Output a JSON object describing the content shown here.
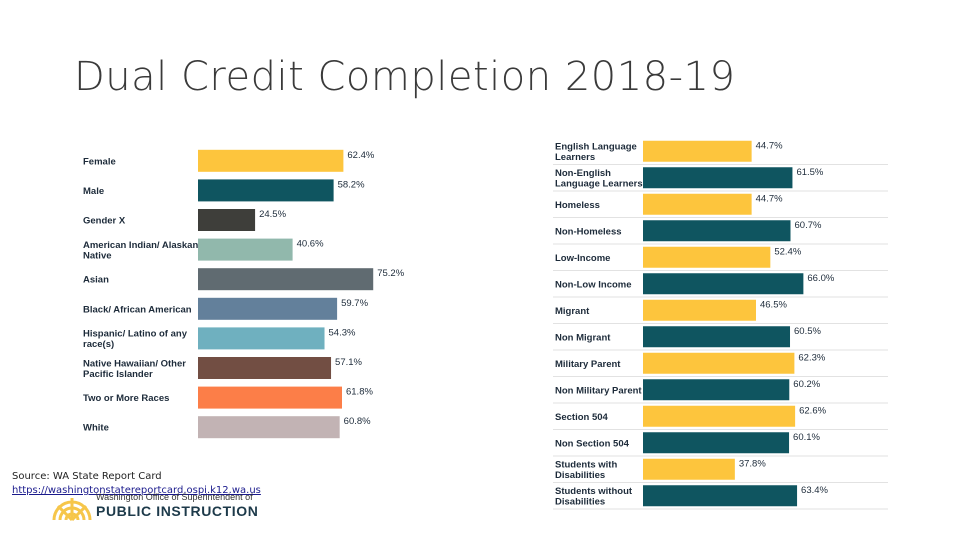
{
  "title": "Dual Credit Completion 2018-19",
  "source": {
    "label": "Source: WA State Report Card",
    "url": "https://washingtonstatereportcard.ospi.k12.wa.us"
  },
  "logo": {
    "line1": "Washington Office of Superintendent of",
    "line2": "PUBLIC INSTRUCTION",
    "icon": "sun-seal-icon",
    "color": "#f6c64a"
  },
  "chart_data": [
    {
      "type": "bar",
      "orientation": "horizontal",
      "categories": [
        [
          "Female"
        ],
        [
          "Male"
        ],
        [
          "Gender X"
        ],
        [
          "American Indian/ Alaskan",
          "Native"
        ],
        [
          "Asian"
        ],
        [
          "Black/ African American"
        ],
        [
          "Hispanic/ Latino of any",
          "race(s)"
        ],
        [
          "Native Hawaiian/ Other",
          "Pacific Islander"
        ],
        [
          "Two or More Races"
        ],
        [
          "White"
        ]
      ],
      "values": [
        62.4,
        58.2,
        24.5,
        40.6,
        75.2,
        59.7,
        54.3,
        57.1,
        61.8,
        60.8
      ],
      "value_labels": [
        "62.4%",
        "58.2%",
        "24.5%",
        "40.6%",
        "75.2%",
        "59.7%",
        "54.3%",
        "57.1%",
        "61.8%",
        "60.8%"
      ],
      "colors": [
        "#fdc53d",
        "#0f5560",
        "#3e3e3a",
        "#91b8ac",
        "#606b71",
        "#63809b",
        "#6fb0bf",
        "#724e43",
        "#fc7e48",
        "#c2b3b4"
      ],
      "xlim": [
        0,
        100
      ]
    },
    {
      "type": "bar",
      "orientation": "horizontal",
      "categories": [
        [
          "English Language",
          "Learners"
        ],
        [
          "Non-English",
          "Language Learners"
        ],
        [
          "Homeless"
        ],
        [
          "Non-Homeless"
        ],
        [
          "Low-Income"
        ],
        [
          "Non-Low Income"
        ],
        [
          "Migrant"
        ],
        [
          "Non Migrant"
        ],
        [
          "Military Parent"
        ],
        [
          "Non Military Parent"
        ],
        [
          "Section 504"
        ],
        [
          "Non Section 504"
        ],
        [
          "Students with",
          "Disabilities"
        ],
        [
          "Students without",
          "Disabilities"
        ]
      ],
      "values": [
        44.7,
        61.5,
        44.7,
        60.7,
        52.4,
        66.0,
        46.5,
        60.5,
        62.3,
        60.2,
        62.6,
        60.1,
        37.8,
        63.4
      ],
      "value_labels": [
        "44.7%",
        "61.5%",
        "44.7%",
        "60.7%",
        "52.4%",
        "66.0%",
        "46.5%",
        "60.5%",
        "62.3%",
        "60.2%",
        "62.6%",
        "60.1%",
        "37.8%",
        "63.4%"
      ],
      "colors": [
        "#fdc53d",
        "#0f5560"
      ],
      "xlim": [
        0,
        100
      ]
    }
  ]
}
